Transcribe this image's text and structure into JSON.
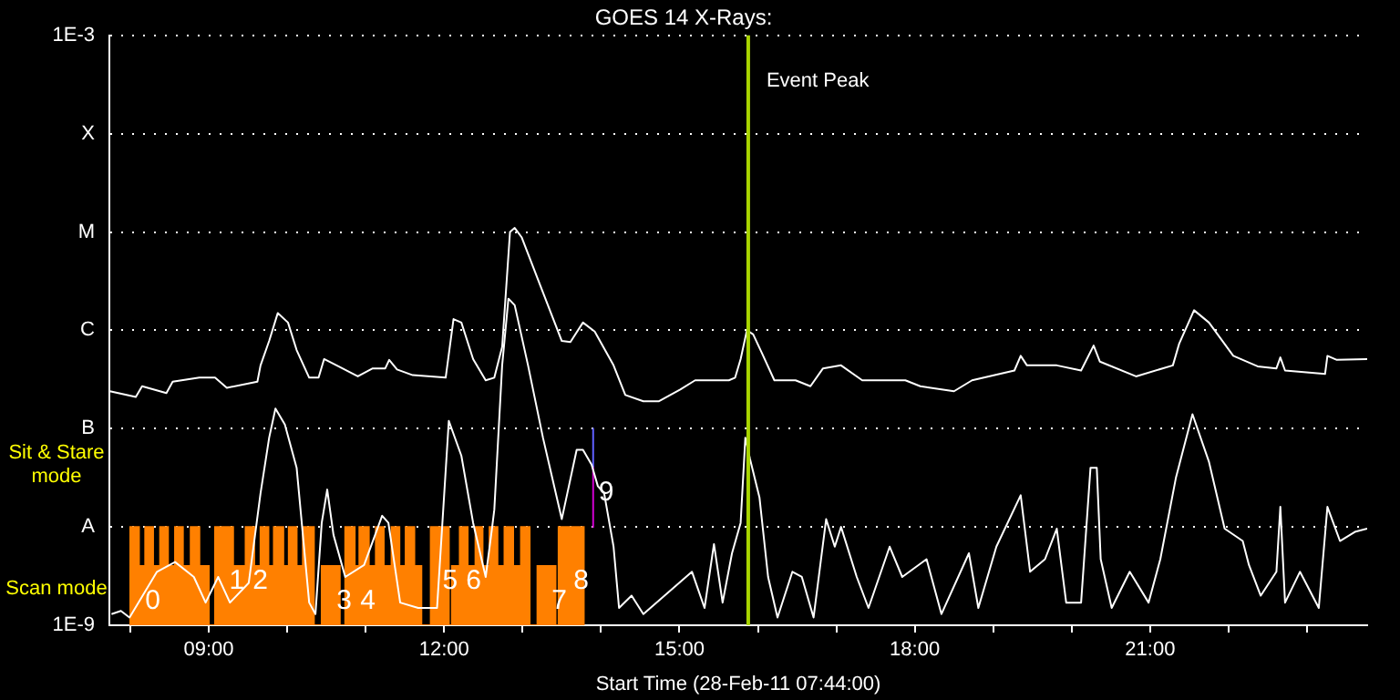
{
  "chart_data": {
    "type": "line",
    "title": "GOES 14 X-Rays:",
    "xlabel": "Start Time (28-Feb-11 07:44:00)",
    "xlim": [
      7.733,
      23.767
    ],
    "xticks": [
      {
        "value": 8,
        "label": null
      },
      {
        "value": 9,
        "label": "09:00"
      },
      {
        "value": 10,
        "label": null
      },
      {
        "value": 11,
        "label": null
      },
      {
        "value": 12,
        "label": "12:00"
      },
      {
        "value": 13,
        "label": null
      },
      {
        "value": 14,
        "label": null
      },
      {
        "value": 15,
        "label": "15:00"
      },
      {
        "value": 16,
        "label": null
      },
      {
        "value": 17,
        "label": null
      },
      {
        "value": 18,
        "label": "18:00"
      },
      {
        "value": 19,
        "label": null
      },
      {
        "value": 20,
        "label": null
      },
      {
        "value": 21,
        "label": "21:00"
      },
      {
        "value": 22,
        "label": null
      },
      {
        "value": 23,
        "label": null
      }
    ],
    "ylim": [
      1e-09,
      0.001
    ],
    "yticks": [
      {
        "value": 1e-09,
        "label": "1E-9"
      },
      {
        "value": 1e-08,
        "label": "A"
      },
      {
        "value": 1e-07,
        "label": "B"
      },
      {
        "value": 1e-06,
        "label": "C"
      },
      {
        "value": 1e-05,
        "label": "M"
      },
      {
        "value": 0.0001,
        "label": "X"
      },
      {
        "value": 0.001,
        "label": "1E-3"
      }
    ],
    "log": true,
    "grid": "y",
    "series": [
      {
        "type": "area",
        "color": "#ff8000",
        "x": [
          8.0,
          8.0,
          8.11,
          8.11,
          8.19,
          8.19,
          8.29,
          8.29,
          8.38,
          8.38,
          8.48,
          8.48,
          8.57,
          8.57,
          8.67,
          8.67,
          8.77,
          8.77,
          8.88,
          8.88,
          9.0,
          9.0,
          9.08,
          9.08,
          9.31,
          9.31,
          9.47,
          9.47,
          9.58,
          9.58,
          9.66,
          9.66,
          9.76,
          9.76,
          9.83,
          9.83,
          9.95,
          9.95,
          10.02,
          10.02,
          10.12,
          10.12,
          10.2,
          10.2,
          10.34,
          10.34,
          10.44,
          10.44,
          10.67,
          10.67,
          10.74,
          10.74,
          10.86,
          10.86,
          10.92,
          10.92,
          11.04,
          11.04,
          11.13,
          11.13,
          11.23,
          11.23,
          11.33,
          11.33,
          11.43,
          11.43,
          11.51,
          11.51,
          11.62,
          11.62,
          11.71,
          11.71,
          11.83,
          11.83,
          12.06,
          12.06,
          12.1,
          12.1,
          12.2,
          12.2,
          12.3,
          12.3,
          12.4,
          12.4,
          12.49,
          12.49,
          12.58,
          12.58,
          12.68,
          12.68,
          12.77,
          12.77,
          12.88,
          12.88,
          12.98,
          12.98,
          13.09,
          13.09,
          13.19,
          13.19,
          13.42,
          13.42,
          13.46,
          13.46,
          13.78,
          13.78
        ],
        "values": [
          1e-09,
          1e-08,
          1e-08,
          4e-09,
          4e-09,
          1e-08,
          1e-08,
          4e-09,
          4e-09,
          1e-08,
          1e-08,
          4e-09,
          4e-09,
          1e-08,
          1e-08,
          4e-09,
          4e-09,
          1e-08,
          1e-08,
          4e-09,
          4e-09,
          1e-09,
          1e-09,
          1e-08,
          1e-08,
          4e-09,
          4e-09,
          1e-08,
          1e-08,
          4e-09,
          4e-09,
          1e-08,
          1e-08,
          4e-09,
          4e-09,
          1e-08,
          1e-08,
          4e-09,
          4e-09,
          1e-08,
          1e-08,
          4e-09,
          4e-09,
          1e-08,
          1e-08,
          1e-09,
          1e-09,
          4e-09,
          4e-09,
          1e-09,
          1e-09,
          1e-08,
          1e-08,
          4e-09,
          4e-09,
          1e-08,
          1e-08,
          4e-09,
          4e-09,
          1e-08,
          1e-08,
          4e-09,
          4e-09,
          1e-08,
          1e-08,
          4e-09,
          4e-09,
          1e-08,
          1e-08,
          4e-09,
          4e-09,
          1e-09,
          1e-09,
          1e-08,
          1e-08,
          1e-09,
          1e-09,
          4e-09,
          4e-09,
          1e-08,
          1e-08,
          4e-09,
          4e-09,
          1e-08,
          1e-08,
          4e-09,
          4e-09,
          1e-08,
          1e-08,
          4e-09,
          4e-09,
          1e-08,
          1e-08,
          4e-09,
          4e-09,
          1e-08,
          1e-08,
          1e-09,
          1e-09,
          4e-09,
          4e-09,
          1e-09,
          1e-09,
          1e-08,
          1e-08,
          1e-09
        ]
      },
      {
        "type": "line",
        "color": "#ffffff",
        "x": [
          7.74,
          8.07,
          8.15,
          8.46,
          8.54,
          8.88,
          9.08,
          9.23,
          9.62,
          9.66,
          9.77,
          9.88,
          10.01,
          10.12,
          10.28,
          10.4,
          10.47,
          10.63,
          10.9,
          11.09,
          11.25,
          11.3,
          11.4,
          11.6,
          12.02,
          12.12,
          12.22,
          12.37,
          12.53,
          12.64,
          12.74,
          12.84,
          12.9,
          12.99,
          13.23,
          13.5,
          13.61,
          13.77,
          13.92,
          14.16,
          14.31,
          14.54,
          14.74,
          15.01,
          15.2,
          15.63,
          15.71,
          15.78,
          15.86,
          15.94,
          16.05,
          16.21,
          16.48,
          16.67,
          16.83,
          17.06,
          17.33,
          17.88,
          18.07,
          18.5,
          18.73,
          19.27,
          19.35,
          19.43,
          19.81,
          20.12,
          20.28,
          20.36,
          20.82,
          21.29,
          21.37,
          21.56,
          21.75,
          22.06,
          22.37,
          22.61,
          22.66,
          22.72,
          23.23,
          23.26,
          23.38,
          23.767
        ],
        "values": [
          2.4e-07,
          2.1e-07,
          2.7e-07,
          2.3e-07,
          3e-07,
          3.3e-07,
          3.3e-07,
          2.6e-07,
          3e-07,
          4.4e-07,
          7.8e-07,
          1.5e-06,
          1.2e-06,
          6.3e-07,
          3.3e-07,
          3.3e-07,
          5.1e-07,
          4.4e-07,
          3.4e-07,
          4.1e-07,
          4.1e-07,
          5e-07,
          4e-07,
          3.5e-07,
          3.3e-07,
          1.3e-06,
          1.2e-06,
          5.1e-07,
          3.1e-07,
          3.3e-07,
          6.8e-07,
          1e-05,
          1.1e-05,
          8.8e-06,
          2.8e-06,
          7.8e-07,
          7.6e-07,
          1.2e-06,
          9.7e-07,
          4.4e-07,
          2.2e-07,
          1.9e-07,
          1.9e-07,
          2.5e-07,
          3.1e-07,
          3.1e-07,
          3.3e-07,
          5.1e-07,
          1e-06,
          9.1e-07,
          5.9e-07,
          3.1e-07,
          3.1e-07,
          2.7e-07,
          4.1e-07,
          4.4e-07,
          3.1e-07,
          3.1e-07,
          2.7e-07,
          2.4e-07,
          3.1e-07,
          3.9e-07,
          5.5e-07,
          4.4e-07,
          4.4e-07,
          3.9e-07,
          7e-07,
          4.8e-07,
          3.4e-07,
          4.4e-07,
          7.3e-07,
          1.6e-06,
          1.2e-06,
          5.5e-07,
          4.3e-07,
          4.1e-07,
          5.3e-07,
          3.9e-07,
          3.6e-07,
          5.5e-07,
          5e-07,
          5.1e-07
        ]
      },
      {
        "type": "line",
        "color": "#ffffff",
        "x": [
          7.76,
          7.88,
          7.99,
          8.34,
          8.57,
          8.81,
          8.96,
          9.12,
          9.27,
          9.51,
          9.66,
          9.77,
          9.85,
          9.97,
          10.12,
          10.28,
          10.36,
          10.44,
          10.51,
          10.59,
          10.74,
          10.98,
          11.21,
          11.29,
          11.44,
          11.67,
          11.91,
          12.06,
          12.22,
          12.37,
          12.53,
          12.61,
          12.64,
          12.74,
          12.82,
          12.9,
          13.07,
          13.26,
          13.5,
          13.69,
          13.77,
          13.88,
          13.96,
          14.04,
          14.16,
          14.23,
          14.39,
          14.54,
          15.16,
          15.32,
          15.44,
          15.55,
          15.67,
          15.78,
          15.84,
          15.9,
          16.02,
          16.13,
          16.25,
          16.44,
          16.56,
          16.71,
          16.87,
          16.98,
          17.06,
          17.26,
          17.41,
          17.68,
          17.84,
          18.15,
          18.34,
          18.69,
          18.81,
          19.04,
          19.35,
          19.47,
          19.66,
          19.81,
          19.93,
          20.12,
          20.24,
          20.32,
          20.37,
          20.51,
          20.74,
          20.98,
          21.13,
          21.33,
          21.54,
          21.75,
          21.95,
          22.18,
          22.26,
          22.41,
          22.61,
          22.66,
          22.72,
          22.91,
          23.15,
          23.26,
          23.42,
          23.61,
          23.767
        ],
        "values": [
          1.3e-09,
          1.4e-09,
          1.2e-09,
          3.5e-09,
          4.4e-09,
          3.1e-09,
          1.7e-09,
          3.1e-09,
          1.7e-09,
          2.7e-09,
          2.2e-08,
          8.1e-08,
          1.6e-07,
          1.1e-07,
          4e-08,
          1.7e-09,
          1.3e-09,
          1.1e-08,
          2.4e-08,
          8.3e-09,
          3.1e-09,
          4.1e-09,
          1.3e-08,
          1.1e-08,
          1.7e-09,
          1.5e-09,
          1.5e-09,
          1.2e-07,
          5.3e-08,
          1.1e-08,
          3.1e-09,
          9.6e-09,
          1.5e-08,
          4.4e-07,
          2.1e-06,
          1.8e-06,
          4.4e-07,
          8.1e-08,
          1.2e-08,
          6.1e-08,
          6.1e-08,
          4.3e-08,
          2.6e-08,
          2.2e-08,
          6.3e-09,
          1.5e-09,
          2e-09,
          1.3e-09,
          3.5e-09,
          1.5e-09,
          6.7e-09,
          1.7e-09,
          5.4e-09,
          1.1e-08,
          8.1e-08,
          4.9e-08,
          2e-08,
          3.1e-09,
          1.2e-09,
          3.5e-09,
          3.1e-09,
          1.2e-09,
          1.2e-08,
          6.3e-09,
          1e-08,
          3.1e-09,
          1.5e-09,
          6.3e-09,
          3.1e-09,
          4.7e-09,
          1.3e-09,
          5.4e-09,
          1.5e-09,
          6.3e-09,
          2.1e-08,
          3.5e-09,
          4.7e-09,
          9.6e-09,
          1.7e-09,
          1.7e-09,
          4e-08,
          4e-08,
          4.7e-09,
          1.5e-09,
          3.5e-09,
          1.7e-09,
          4.7e-09,
          3.2e-08,
          1.4e-07,
          4.6e-08,
          9.6e-09,
          7.2e-09,
          4.1e-09,
          2e-09,
          3.5e-09,
          1.6e-08,
          1.7e-09,
          3.5e-09,
          1.5e-09,
          1.6e-08,
          7.2e-09,
          8.9e-09,
          9.6e-09
        ]
      },
      {
        "type": "line",
        "color": "#6060ff",
        "x": [
          13.9,
          13.9
        ],
        "values": [
          1e-07,
          4.1e-08
        ]
      },
      {
        "type": "line",
        "color": "#d000d0",
        "x": [
          13.9,
          13.9
        ],
        "values": [
          4.1e-08,
          1e-08
        ]
      }
    ],
    "ref_lines": [
      {
        "axis": "x",
        "value": 15.877,
        "label": "Event Peak",
        "color": "#a8d400"
      }
    ],
    "annotations": [
      {
        "text": "0",
        "x": 8.12,
        "y": 4e-09
      },
      {
        "text": "1",
        "x": 9.19,
        "y": 1e-08
      },
      {
        "text": "2",
        "x": 9.49,
        "y": 1e-08
      },
      {
        "text": "3",
        "x": 10.56,
        "y": 4e-09
      },
      {
        "text": "4",
        "x": 10.86,
        "y": 4e-09
      },
      {
        "text": "5",
        "x": 11.91,
        "y": 1e-08
      },
      {
        "text": "6",
        "x": 12.21,
        "y": 1e-08
      },
      {
        "text": "7",
        "x": 13.3,
        "y": 4e-09
      },
      {
        "text": "8",
        "x": 13.58,
        "y": 1e-08
      },
      {
        "text": "9",
        "x": 13.9,
        "y": 2.2e-08
      },
      "Sit & Stare mode",
      "Scan mode"
    ]
  }
}
